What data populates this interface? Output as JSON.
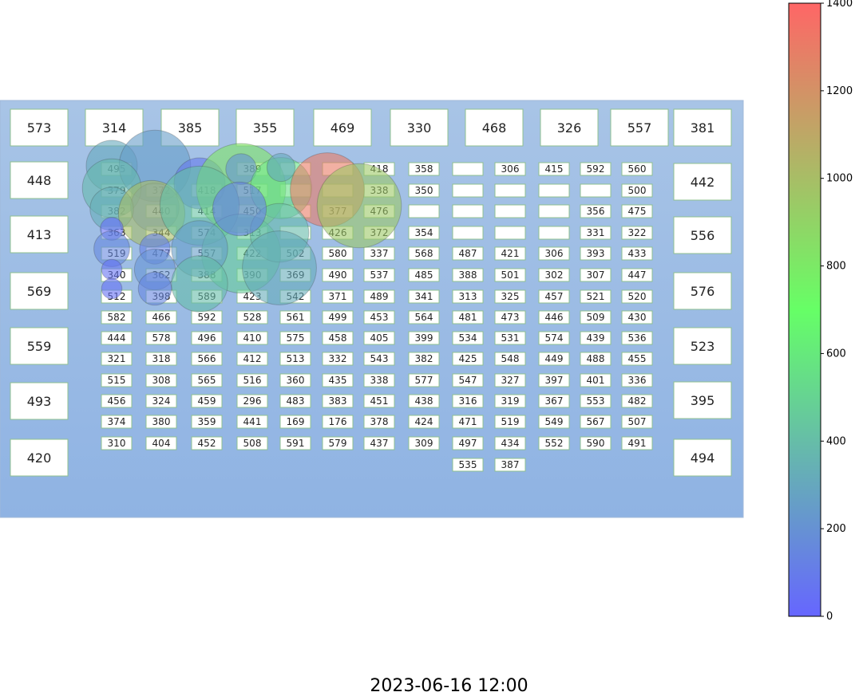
{
  "footer": {
    "timestamp": "2023-06-16 12:00"
  },
  "chart_data": {
    "type": "scatter",
    "colorbar": {
      "min": 0,
      "max": 1400,
      "ticks": [
        0,
        200,
        400,
        600,
        800,
        1000,
        1200,
        1400
      ],
      "colors": [
        "#6666ff",
        "#66ff66",
        "#ff6666"
      ]
    },
    "big_boxes": [
      "573",
      "314",
      "385",
      "355",
      "469",
      "330",
      "468",
      "326",
      "557",
      "381",
      "448",
      "442",
      "413",
      "556",
      "569",
      "576",
      "559",
      "523",
      "493",
      "395",
      "420",
      "494"
    ],
    "columns": [
      [
        "495",
        "379",
        "382",
        "363",
        "519",
        "340",
        "512",
        "582",
        "444",
        "321",
        "515",
        "456",
        "374",
        "310"
      ],
      [
        "372",
        "440",
        "344",
        "477",
        "362",
        "398",
        "466",
        "578",
        "318",
        "308",
        "324",
        "380",
        "404"
      ],
      [
        "418",
        "414",
        "574",
        "557",
        "388",
        "589",
        "592",
        "496",
        "566",
        "565",
        "459",
        "359",
        "452"
      ],
      [
        "389",
        "517",
        "450",
        "313",
        "422",
        "390",
        "423",
        "528",
        "410",
        "412",
        "516",
        "296",
        "441",
        "508"
      ],
      [
        "",
        "",
        "",
        "",
        "502",
        "369",
        "542",
        "561",
        "575",
        "513",
        "360",
        "483",
        "169",
        "591"
      ],
      [
        "",
        "",
        "377",
        "426",
        "580",
        "490",
        "371",
        "499",
        "458",
        "332",
        "435",
        "383",
        "176",
        "579"
      ],
      [
        "418",
        "338",
        "476",
        "372",
        "337",
        "537",
        "489",
        "453",
        "405",
        "543",
        "338",
        "451",
        "378",
        "437"
      ],
      [
        "358",
        "350",
        "",
        "354",
        "568",
        "485",
        "341",
        "564",
        "399",
        "382",
        "577",
        "438",
        "424",
        "309"
      ],
      [
        "",
        "",
        "",
        "",
        "487",
        "388",
        "313",
        "481",
        "534",
        "425",
        "547",
        "316",
        "471",
        "497",
        "535"
      ],
      [
        "306",
        "",
        "",
        "",
        "421",
        "501",
        "325",
        "473",
        "531",
        "548",
        "327",
        "319",
        "519",
        "434",
        "387"
      ],
      [
        "415",
        "",
        "",
        "",
        "306",
        "302",
        "457",
        "446",
        "574",
        "449",
        "397",
        "367",
        "549",
        "552"
      ],
      [
        "592",
        "",
        "356",
        "331",
        "393",
        "307",
        "521",
        "509",
        "439",
        "488",
        "401",
        "553",
        "567",
        "590"
      ],
      [
        "560",
        "500",
        "475",
        "322",
        "433",
        "447",
        "520",
        "430",
        "536",
        "455",
        "336",
        "482",
        "507",
        "491"
      ]
    ],
    "bubbles": [
      {
        "v": 300,
        "s": 20
      },
      {
        "v": 250,
        "s": 28
      },
      {
        "v": 380,
        "s": 23
      },
      {
        "v": 90,
        "s": 20
      },
      {
        "v": 180,
        "s": 19
      },
      {
        "v": 820,
        "s": 35
      },
      {
        "v": 330,
        "s": 17
      },
      {
        "v": 1000,
        "s": 26
      },
      {
        "v": 420,
        "s": 31
      },
      {
        "v": 200,
        "s": 12
      },
      {
        "v": 560,
        "s": 24
      },
      {
        "v": 300,
        "s": 11
      },
      {
        "v": 1300,
        "s": 29
      },
      {
        "v": 40,
        "s": 9
      },
      {
        "v": 150,
        "s": 14
      },
      {
        "v": 120,
        "s": 12
      },
      {
        "v": 60,
        "s": 8
      },
      {
        "v": 470,
        "s": 31
      },
      {
        "v": 950,
        "s": 33
      },
      {
        "v": 250,
        "s": 22
      },
      {
        "v": 390,
        "s": 23
      },
      {
        "v": 110,
        "s": 21
      },
      {
        "v": 320,
        "s": 29
      },
      {
        "v": 50,
        "s": 8
      },
      {
        "v": 200,
        "s": 16
      },
      {
        "v": 400,
        "s": 22
      },
      {
        "v": 140,
        "s": 13
      }
    ]
  }
}
